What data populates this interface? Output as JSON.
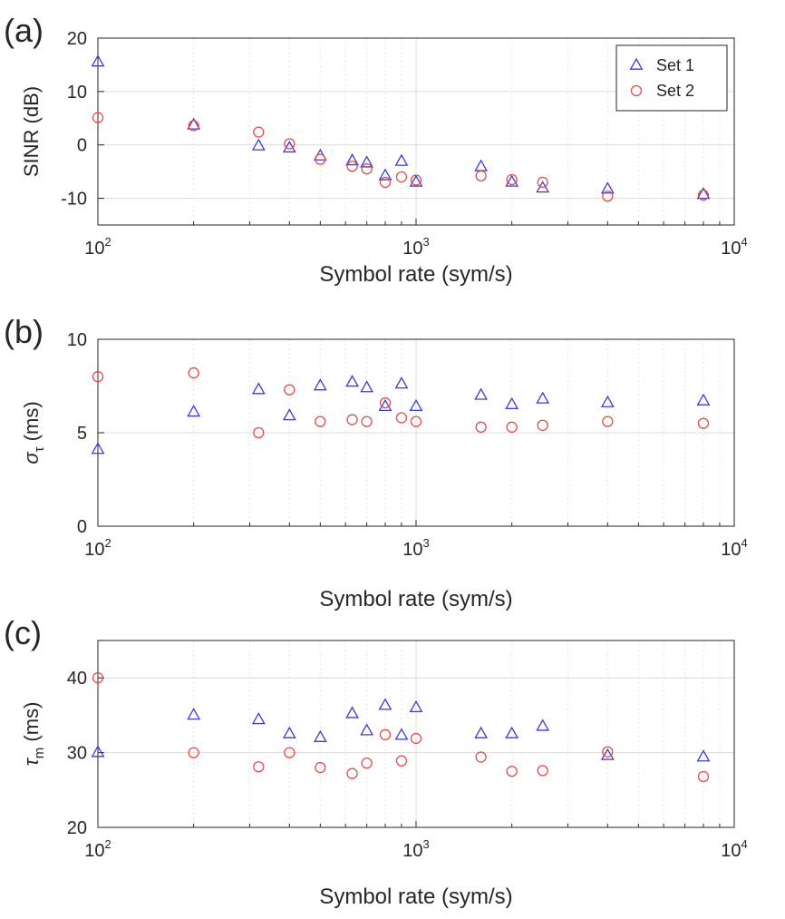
{
  "chart_data": [
    {
      "type": "scatter",
      "panel_label": "(a)",
      "xlabel": "Symbol rate (sym/s)",
      "ylabel": "SINR (dB)",
      "xscale": "log",
      "xlim": [
        100,
        10000
      ],
      "ylim": [
        -15,
        20
      ],
      "yticks": [
        -10,
        0,
        10,
        20
      ],
      "xticks": [
        {
          "value": 100,
          "base": "10",
          "exp": "2"
        },
        {
          "value": 1000,
          "base": "10",
          "exp": "3"
        },
        {
          "value": 10000,
          "base": "10",
          "exp": "4"
        }
      ],
      "grid": true,
      "legend": {
        "placement": "top-right",
        "entries": [
          "Set 1",
          "Set 2"
        ]
      },
      "x": [
        100,
        200,
        320,
        400,
        500,
        630,
        700,
        800,
        900,
        1000,
        1600,
        2000,
        2500,
        4000,
        8000
      ],
      "series": [
        {
          "name": "Set 1",
          "marker": "triangle",
          "color": "#3b3bd6",
          "values": [
            15.5,
            3.7,
            -0.2,
            -0.6,
            -2.1,
            -3.0,
            -3.4,
            -5.8,
            -3.1,
            -7.0,
            -4.1,
            -7.0,
            -8.1,
            -8.3,
            -9.3
          ]
        },
        {
          "name": "Set 2",
          "marker": "circle",
          "color": "#e84a4a",
          "values": [
            5.1,
            3.6,
            2.4,
            0.2,
            -2.7,
            -4.0,
            -4.5,
            -7.0,
            -6.0,
            -6.6,
            -5.8,
            -6.5,
            -7.0,
            -9.6,
            -9.4
          ]
        }
      ]
    },
    {
      "type": "scatter",
      "panel_label": "(b)",
      "xlabel": "Symbol rate (sym/s)",
      "ylabel": "σ_τ (ms)",
      "ylabel_main": "σ",
      "ylabel_sub": "τ",
      "ylabel_unit": " (ms)",
      "xscale": "log",
      "xlim": [
        100,
        10000
      ],
      "ylim": [
        0,
        10
      ],
      "yticks": [
        0,
        5,
        10
      ],
      "xticks": [
        {
          "value": 100,
          "base": "10",
          "exp": "2"
        },
        {
          "value": 1000,
          "base": "10",
          "exp": "3"
        },
        {
          "value": 10000,
          "base": "10",
          "exp": "4"
        }
      ],
      "grid": true,
      "x": [
        100,
        200,
        320,
        400,
        500,
        630,
        700,
        800,
        900,
        1000,
        1600,
        2000,
        2500,
        4000,
        8000
      ],
      "series": [
        {
          "name": "Set 1",
          "marker": "triangle",
          "color": "#3b3bd6",
          "values": [
            4.1,
            6.1,
            7.3,
            5.9,
            7.5,
            7.7,
            7.4,
            6.4,
            7.6,
            6.4,
            7.0,
            6.5,
            6.8,
            6.6,
            6.7
          ]
        },
        {
          "name": "Set 2",
          "marker": "circle",
          "color": "#e84a4a",
          "values": [
            8.0,
            8.2,
            5.0,
            7.3,
            5.6,
            5.7,
            5.6,
            6.6,
            5.8,
            5.6,
            5.3,
            5.3,
            5.4,
            5.6,
            5.5
          ]
        }
      ]
    },
    {
      "type": "scatter",
      "panel_label": "(c)",
      "xlabel": "Symbol rate (sym/s)",
      "ylabel": "τ_m (ms)",
      "ylabel_main": "τ",
      "ylabel_sub": "m",
      "ylabel_unit": " (ms)",
      "xscale": "log",
      "xlim": [
        100,
        10000
      ],
      "ylim": [
        20,
        45
      ],
      "yticks": [
        20,
        30,
        40
      ],
      "xticks": [
        {
          "value": 100,
          "base": "10",
          "exp": "2"
        },
        {
          "value": 1000,
          "base": "10",
          "exp": "3"
        },
        {
          "value": 10000,
          "base": "10",
          "exp": "4"
        }
      ],
      "grid": true,
      "x": [
        100,
        200,
        320,
        400,
        500,
        630,
        700,
        800,
        900,
        1000,
        1600,
        2000,
        2500,
        4000,
        8000
      ],
      "series": [
        {
          "name": "Set 1",
          "marker": "triangle",
          "color": "#3b3bd6",
          "values": [
            30.0,
            35.0,
            34.4,
            32.5,
            32.0,
            35.2,
            32.9,
            36.3,
            32.3,
            36.0,
            32.5,
            32.5,
            33.5,
            29.6,
            29.4
          ]
        },
        {
          "name": "Set 2",
          "marker": "circle",
          "color": "#e84a4a",
          "values": [
            40.0,
            30.0,
            28.1,
            30.0,
            28.0,
            27.2,
            28.6,
            32.4,
            28.9,
            31.9,
            29.4,
            27.5,
            27.6,
            30.1,
            26.8
          ]
        }
      ]
    }
  ]
}
